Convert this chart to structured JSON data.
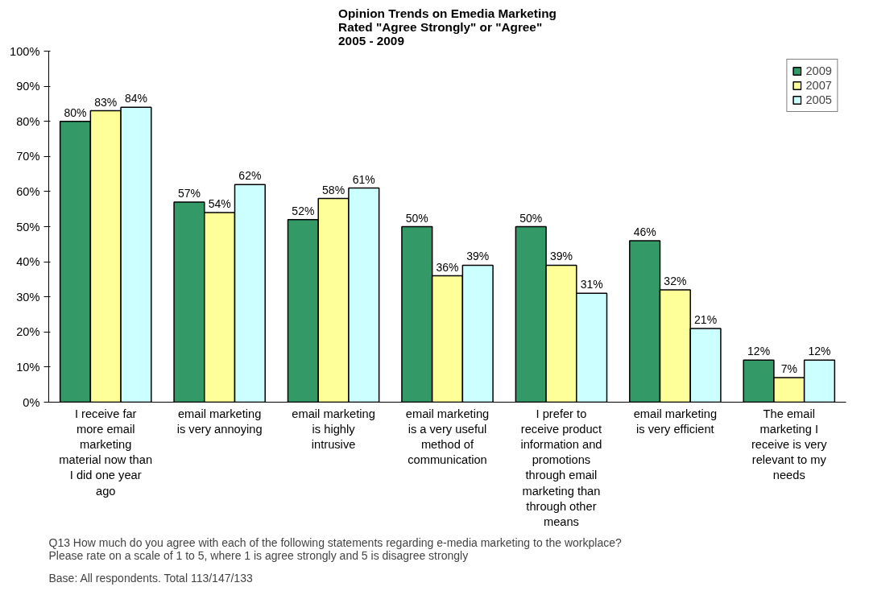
{
  "chart_data": {
    "type": "bar",
    "title": "Opinion Trends on Emedia Marketing\nRated \"Agree Strongly\" or \"Agree\"\n2005 - 2009",
    "categories": [
      "I receive far more email marketing material now than I did one year ago",
      "email marketing is very annoying",
      "email marketing is highly intrusive",
      "email marketing is a very useful method of communication",
      "I prefer to receive product information and promotions through email marketing than through other means",
      "email marketing is very efficient",
      "The email marketing I receive is very relevant to my needs"
    ],
    "series": [
      {
        "name": "2009",
        "color": "#339966",
        "values": [
          80,
          57,
          52,
          50,
          50,
          46,
          12
        ],
        "value_labels": [
          "80%",
          "57%",
          "52%",
          "50%",
          "50%",
          "46%",
          "12%"
        ]
      },
      {
        "name": "2007",
        "color": "#ffff99",
        "values": [
          83,
          54,
          58,
          36,
          39,
          32,
          7
        ],
        "value_labels": [
          "83%",
          "54%",
          "58%",
          "36%",
          "39%",
          "32%",
          "7%"
        ]
      },
      {
        "name": "2005",
        "color": "#ccffff",
        "values": [
          84,
          62,
          61,
          39,
          31,
          21,
          12
        ],
        "value_labels": [
          "84%",
          "62%",
          "61%",
          "39%",
          "31%",
          "21%",
          "12%"
        ]
      }
    ],
    "ylim": [
      0,
      100
    ],
    "yticks": [
      {
        "value": 0,
        "label": "0%"
      },
      {
        "value": 10,
        "label": "10%"
      },
      {
        "value": 20,
        "label": "20%"
      },
      {
        "value": 30,
        "label": "30%"
      },
      {
        "value": 40,
        "label": "40%"
      },
      {
        "value": 50,
        "label": "50%"
      },
      {
        "value": 60,
        "label": "60%"
      },
      {
        "value": 70,
        "label": "70%"
      },
      {
        "value": 80,
        "label": "80%"
      },
      {
        "value": 90,
        "label": "90%"
      },
      {
        "value": 100,
        "label": "100%"
      }
    ],
    "grid": false,
    "legend": "top right",
    "annotations": [
      "Q13 How much do you agree with each of the following statements regarding e-media marketing to the workplace?\n     Please rate on a scale of 1 to 5, where 1 is agree strongly and 5 is disagree strongly",
      "Base: All respondents. Total 113/147/133"
    ]
  }
}
